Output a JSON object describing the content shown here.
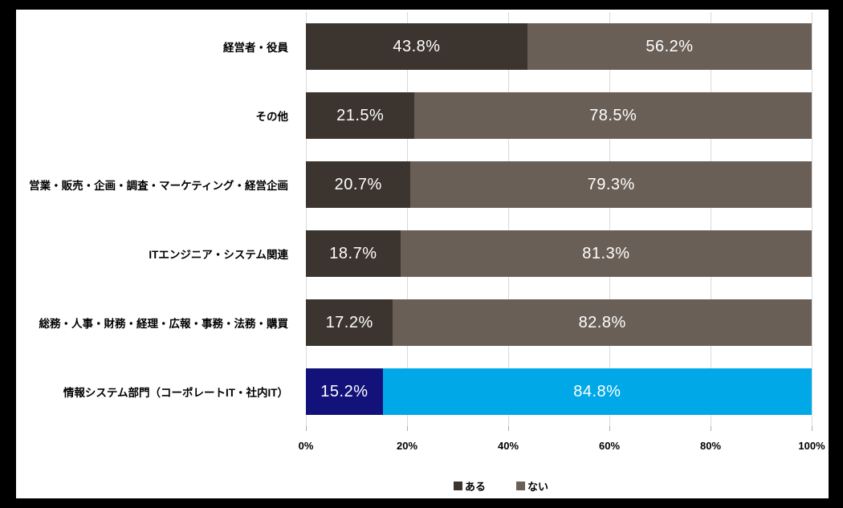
{
  "page": {
    "background_color": "#000000",
    "chart_background_color": "#FFFFFF"
  },
  "chart_data": {
    "type": "bar",
    "orientation": "horizontal_stacked",
    "title": "",
    "xlabel": "",
    "ylabel": "",
    "xlim": [
      0,
      100
    ],
    "grid": true,
    "legend_position": "bottom",
    "categories": [
      "経営者・役員",
      "その他",
      "営業・販売・企画・調査・マーケティング・経営企画",
      "ITエンジニア・システム関連",
      "総務・人事・財務・経理・広報・事務・法務・購買",
      "情報システム部門（コーポレートIT・社内IT）"
    ],
    "series": [
      {
        "name": "ある",
        "values": [
          43.8,
          21.5,
          20.7,
          18.7,
          17.2,
          15.2
        ],
        "labels": [
          "43.8%",
          "21.5%",
          "20.7%",
          "18.7%",
          "17.2%",
          "15.2%"
        ]
      },
      {
        "name": "ない",
        "values": [
          56.2,
          78.5,
          79.3,
          81.3,
          82.8,
          84.8
        ],
        "labels": [
          "56.2%",
          "78.5%",
          "79.3%",
          "81.3%",
          "82.8%",
          "84.8%"
        ]
      }
    ],
    "x_ticks": [
      {
        "label": "0%",
        "value": 0
      },
      {
        "label": "20%",
        "value": 20
      },
      {
        "label": "40%",
        "value": 40
      },
      {
        "label": "60%",
        "value": 60
      },
      {
        "label": "80%",
        "value": 80
      },
      {
        "label": "100%",
        "value": 100
      }
    ],
    "highlight_row": 5,
    "colors": {
      "series1_default": "#3C352F",
      "series2_default": "#6A5F57",
      "series1_highlight": "#12127A",
      "series2_highlight": "#00A8E8",
      "gridline": "#D9D9D9",
      "tick": "#ADADAD",
      "data_label": "#FFFFFF",
      "axis_text": "#000000"
    }
  },
  "legend": {
    "items": [
      {
        "label": "ある",
        "color": "#3C352F"
      },
      {
        "label": "ない",
        "color": "#6A5F57"
      }
    ]
  }
}
